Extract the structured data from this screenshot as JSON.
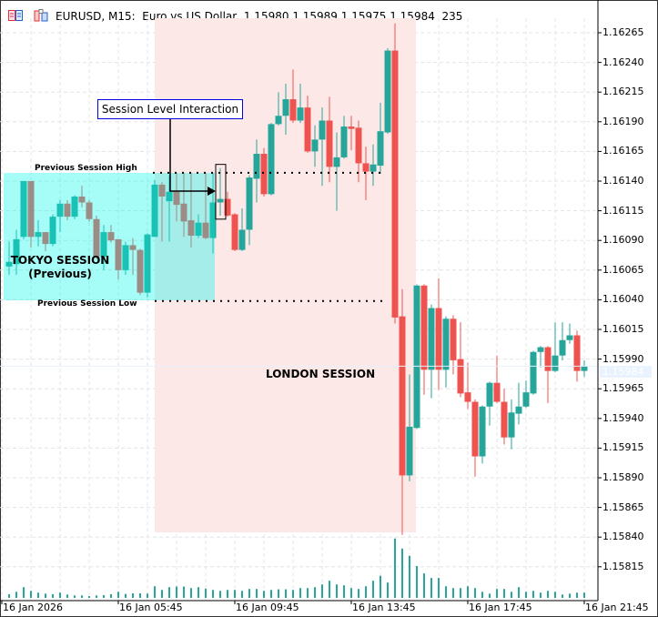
{
  "header": {
    "symbol": "EURUSD, M15:",
    "description": "Euro vs US Dollar",
    "open": "1.15980",
    "high": "1.15989",
    "low": "1.15975",
    "close": "1.15984",
    "bars": "235"
  },
  "icons": [
    "chart-list-icon",
    "chart-template-icon"
  ],
  "colors": {
    "bull": "#26a69a",
    "bear": "#ef5350",
    "tokyo": "#00f5e8",
    "london": "#fde8e8",
    "annotation_border": "#0000e0"
  },
  "annotations": {
    "interaction": "Session Level Interaction",
    "prev_high": "Previous Session High",
    "prev_low": "Previous Session Low",
    "tokyo": "TOKYO SESSION",
    "tokyo_sub": "(Previous)",
    "london": "LONDON SESSION"
  },
  "current_price": "1.15984",
  "price_axis": [
    "1.16265",
    "1.16240",
    "1.16215",
    "1.16190",
    "1.16165",
    "1.16140",
    "1.16115",
    "1.16090",
    "1.16065",
    "1.16040",
    "1.16015",
    "1.15990",
    "1.15965",
    "1.15940",
    "1.15915",
    "1.15890",
    "1.15865",
    "1.15840",
    "1.15815"
  ],
  "time_axis": [
    "16 Jan 2026",
    "16 Jan 05:45",
    "16 Jan 09:45",
    "16 Jan 13:45",
    "16 Jan 17:45",
    "16 Jan 21:45"
  ],
  "chart_data": {
    "type": "candlestick",
    "timeframe": "M15",
    "first_bar_time": "16 Jan 02:00",
    "ylim": [
      1.158,
      1.1628
    ],
    "grid": true,
    "previous_session_high": 1.16147,
    "previous_session_low": 1.16039,
    "ohlc": [
      [
        1.16068,
        1.16089,
        1.16061,
        1.16072
      ],
      [
        1.1607,
        1.16099,
        1.16061,
        1.16091
      ],
      [
        1.16093,
        1.1614,
        1.16091,
        1.1614
      ],
      [
        1.1614,
        1.1614,
        1.16084,
        1.16093
      ],
      [
        1.16093,
        1.16107,
        1.16085,
        1.16097
      ],
      [
        1.16097,
        1.16097,
        1.16081,
        1.16087
      ],
      [
        1.16087,
        1.16112,
        1.16085,
        1.1611
      ],
      [
        1.1611,
        1.16124,
        1.16097,
        1.16121
      ],
      [
        1.16121,
        1.16124,
        1.16107,
        1.1611
      ],
      [
        1.1611,
        1.16128,
        1.16108,
        1.16127
      ],
      [
        1.16127,
        1.16136,
        1.16118,
        1.16122
      ],
      [
        1.16122,
        1.16124,
        1.16106,
        1.16108
      ],
      [
        1.16108,
        1.16111,
        1.16074,
        1.16076
      ],
      [
        1.16076,
        1.16103,
        1.16065,
        1.16097
      ],
      [
        1.16097,
        1.16103,
        1.16088,
        1.1609
      ],
      [
        1.16091,
        1.16091,
        1.16057,
        1.16065
      ],
      [
        1.16065,
        1.16089,
        1.16061,
        1.16086
      ],
      [
        1.16086,
        1.16092,
        1.16061,
        1.16082
      ],
      [
        1.16082,
        1.16083,
        1.16044,
        1.16046
      ],
      [
        1.16046,
        1.16096,
        1.16042,
        1.16095
      ],
      [
        1.16093,
        1.16141,
        1.16093,
        1.16137
      ],
      [
        1.16137,
        1.16139,
        1.16089,
        1.16127
      ],
      [
        1.16123,
        1.16145,
        1.16089,
        1.16131
      ],
      [
        1.16131,
        1.16147,
        1.16106,
        1.1612
      ],
      [
        1.16121,
        1.16147,
        1.16093,
        1.16106
      ],
      [
        1.16107,
        1.16147,
        1.16084,
        1.16094
      ],
      [
        1.16094,
        1.16112,
        1.16092,
        1.16105
      ],
      [
        1.16105,
        1.16147,
        1.16091,
        1.16092
      ],
      [
        1.16092,
        1.16147,
        1.16079,
        1.16122
      ],
      [
        1.16122,
        1.16151,
        1.16111,
        1.16125
      ],
      [
        1.16125,
        1.16131,
        1.1611,
        1.16111
      ],
      [
        1.16112,
        1.16113,
        1.16081,
        1.16082
      ],
      [
        1.16082,
        1.16117,
        1.16081,
        1.16099
      ],
      [
        1.16099,
        1.16145,
        1.16086,
        1.16143
      ],
      [
        1.16142,
        1.16175,
        1.16122,
        1.16163
      ],
      [
        1.16163,
        1.16168,
        1.16127,
        1.16129
      ],
      [
        1.16129,
        1.16189,
        1.16128,
        1.16188
      ],
      [
        1.16188,
        1.16215,
        1.16187,
        1.16195
      ],
      [
        1.16195,
        1.16222,
        1.16179,
        1.16209
      ],
      [
        1.16209,
        1.16234,
        1.16189,
        1.16191
      ],
      [
        1.16191,
        1.16222,
        1.16189,
        1.16202
      ],
      [
        1.16202,
        1.16212,
        1.16164,
        1.16165
      ],
      [
        1.16165,
        1.16187,
        1.16152,
        1.16175
      ],
      [
        1.16175,
        1.16202,
        1.16136,
        1.16191
      ],
      [
        1.16191,
        1.16211,
        1.16139,
        1.16152
      ],
      [
        1.16152,
        1.16181,
        1.16115,
        1.1616
      ],
      [
        1.1616,
        1.16195,
        1.16159,
        1.16186
      ],
      [
        1.16186,
        1.16195,
        1.16166,
        1.16184
      ],
      [
        1.16185,
        1.16191,
        1.16139,
        1.16155
      ],
      [
        1.16155,
        1.16169,
        1.16124,
        1.16148
      ],
      [
        1.16148,
        1.16171,
        1.16136,
        1.16154
      ],
      [
        1.16153,
        1.16206,
        1.16146,
        1.16182
      ],
      [
        1.16181,
        1.16252,
        1.1618,
        1.1625
      ],
      [
        1.1625,
        1.16273,
        1.1602,
        1.16025
      ],
      [
        1.16026,
        1.16049,
        1.15842,
        1.15892
      ],
      [
        1.15892,
        1.15977,
        1.15887,
        1.15933
      ],
      [
        1.15932,
        1.16053,
        1.15931,
        1.16052
      ],
      [
        1.16052,
        1.16053,
        1.1596,
        1.15981
      ],
      [
        1.15981,
        1.16036,
        1.15957,
        1.16033
      ],
      [
        1.16033,
        1.16058,
        1.15964,
        1.15981
      ],
      [
        1.15981,
        1.16026,
        1.15966,
        1.16024
      ],
      [
        1.16024,
        1.16027,
        1.15977,
        1.15989
      ],
      [
        1.1599,
        1.16021,
        1.15958,
        1.15961
      ],
      [
        1.15962,
        1.15987,
        1.15948,
        1.15954
      ],
      [
        1.15954,
        1.15956,
        1.15891,
        1.15908
      ],
      [
        1.15908,
        1.15951,
        1.15902,
        1.1595
      ],
      [
        1.1595,
        1.15971,
        1.15934,
        1.1597
      ],
      [
        1.1597,
        1.15993,
        1.15953,
        1.15954
      ],
      [
        1.15954,
        1.15965,
        1.15918,
        1.15924
      ],
      [
        1.15924,
        1.15956,
        1.15914,
        1.15945
      ],
      [
        1.15944,
        1.1597,
        1.15935,
        1.1595
      ],
      [
        1.1595,
        1.15972,
        1.15949,
        1.15962
      ],
      [
        1.15961,
        1.15997,
        1.1596,
        1.15996
      ],
      [
        1.15996,
        1.16001,
        1.15983,
        1.16
      ],
      [
        1.16,
        1.16001,
        1.15953,
        1.1598
      ],
      [
        1.1598,
        1.16021,
        1.15979,
        1.15993
      ],
      [
        1.15993,
        1.16021,
        1.15989,
        1.16006
      ],
      [
        1.16006,
        1.1602,
        1.16003,
        1.1601
      ],
      [
        1.1601,
        1.16014,
        1.15971,
        1.1598
      ],
      [
        1.1598,
        1.15989,
        1.15975,
        1.15984
      ]
    ],
    "volume": [
      12,
      20,
      35,
      23,
      17,
      14,
      12,
      17,
      11,
      8,
      8,
      6,
      8,
      9,
      12,
      20,
      13,
      15,
      15,
      14,
      38,
      26,
      35,
      37,
      37,
      32,
      35,
      30,
      26,
      23,
      26,
      26,
      23,
      29,
      29,
      23,
      26,
      28,
      28,
      26,
      32,
      32,
      35,
      44,
      56,
      44,
      41,
      32,
      29,
      38,
      56,
      72,
      50,
      194,
      161,
      137,
      104,
      80,
      65,
      65,
      38,
      32,
      32,
      38,
      32,
      20,
      14,
      29,
      29,
      20,
      35,
      20,
      23,
      17,
      23,
      20,
      11,
      14,
      17,
      17
    ],
    "sessions": [
      {
        "name": "TOKYO SESSION",
        "first_bar": 0,
        "last_bar": 28
      },
      {
        "name": "LONDON SESSION",
        "first_bar": 20,
        "last_bar": 55
      }
    ],
    "highlighted_bar": 29
  }
}
